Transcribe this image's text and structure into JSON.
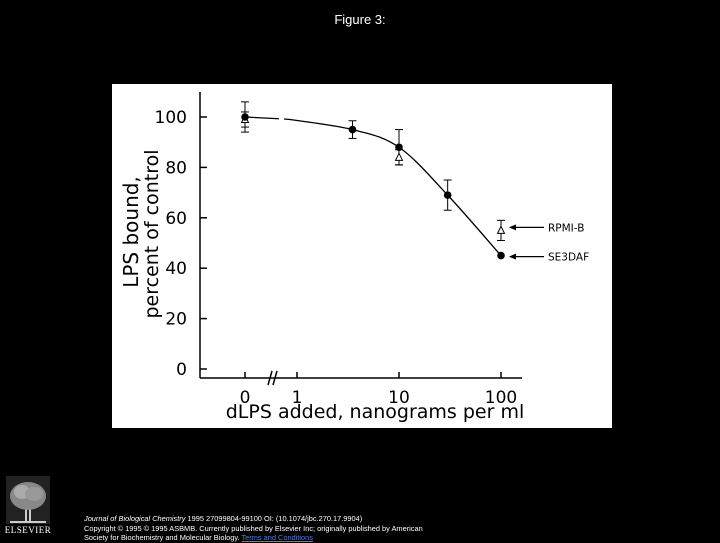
{
  "figure_title": "Figure 3:",
  "chart_data": {
    "type": "line",
    "xlabel": "dLPS added, nanograms per ml",
    "ylabel_line1": "LPS bound,",
    "ylabel_line2": "percent of control",
    "x_scale": "log (with axis break between 0 and 1)",
    "x_tick_labels": [
      "0",
      "1",
      "10",
      "100"
    ],
    "y_tick_labels": [
      "0",
      "20",
      "40",
      "60",
      "80",
      "100"
    ],
    "ylim": [
      0,
      100
    ],
    "series": [
      {
        "name": "SE3DAF",
        "marker": "filled-circle",
        "points": [
          {
            "x": 0,
            "y": 100,
            "err": 6
          },
          {
            "x": 3.5,
            "y": 95,
            "err": 3.5
          },
          {
            "x": 10,
            "y": 88,
            "err": 7
          },
          {
            "x": 30,
            "y": 69,
            "err": 6
          },
          {
            "x": 100,
            "y": 45,
            "err": 0
          }
        ]
      },
      {
        "name": "RPMI-B",
        "marker": "open-triangle",
        "points": [
          {
            "x": 0,
            "y": 99,
            "err": 3
          },
          {
            "x": 10,
            "y": 84,
            "err": 3
          },
          {
            "x": 100,
            "y": 55,
            "err": 4
          }
        ]
      }
    ]
  },
  "citation": {
    "journal": "Journal of Biological Chemistry",
    "ref": " 1995 27099804-99100 OI: (10.1074/jbc.270.17.9904)",
    "copyright": "Copyright © 1995 © 1995 ASBMB. Currently published by Elsevier Inc; originally published by American",
    "society": "Society for Biochemistry and Molecular Biology.",
    "link": "Terms and Conditions"
  },
  "publisher_logo_text": "ELSEVIER"
}
